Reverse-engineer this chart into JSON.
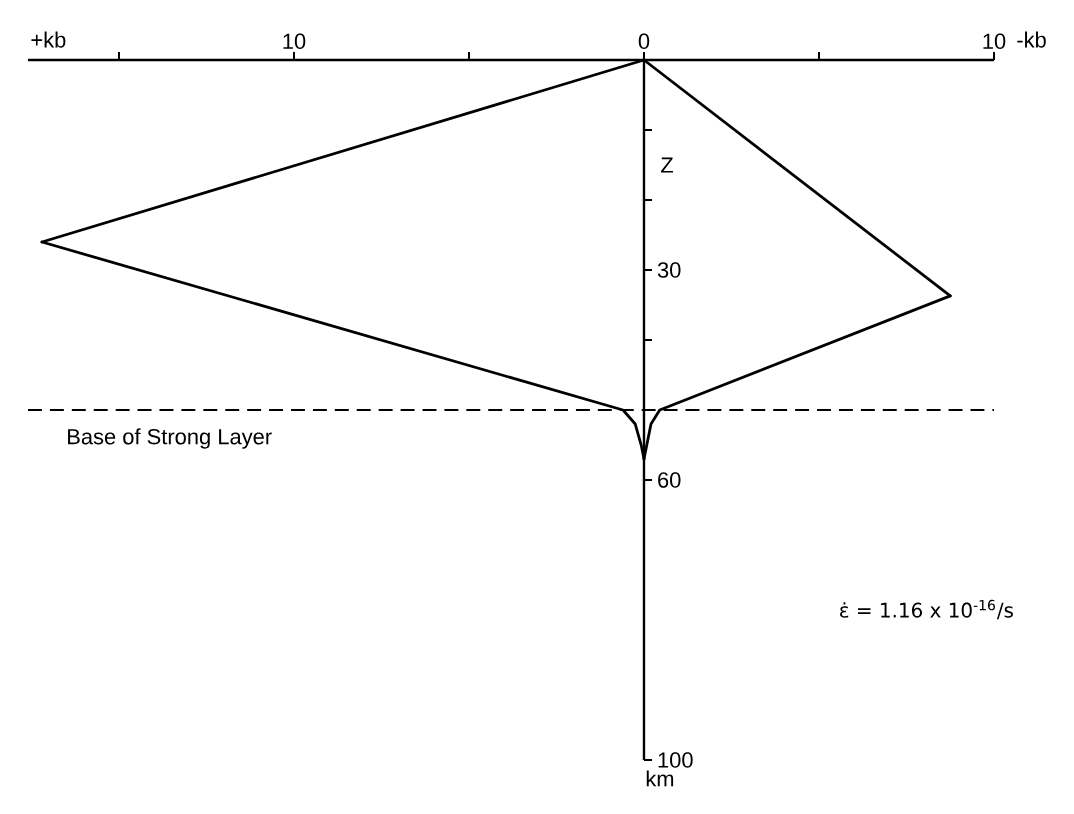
{
  "chart_data": {
    "type": "line",
    "ylabel": "Z",
    "annotations": [
      "+kb",
      "-kb",
      "km",
      "ε̇ = 1.16 x 10$^{-16}$/s"
    ],
    "series": [
      {
        "color": "#000000",
        "x": [
          0,
          17.2
        ],
        "values": [
          0,
          26
        ]
      },
      {
        "color": "#000000",
        "x": [
          17.2,
          0.6,
          0.25,
          0.08,
          0
        ],
        "values": [
          26,
          50,
          52,
          55,
          57
        ]
      },
      {
        "color": "#000000",
        "x": [
          0,
          -0.08,
          -0.2,
          -0.45,
          -8.75
        ],
        "values": [
          57,
          55,
          52,
          50,
          33.7
        ]
      },
      {
        "color": "#000000",
        "x": [
          -8.75,
          0
        ],
        "values": [
          33.7,
          0
        ]
      }
    ],
    "line_style": "solid",
    "xlim": [
      17.6,
      -10
    ],
    "ylim": [
      100,
      0
    ],
    "xticks": [
      {
        "value": 15,
        "label": null
      },
      10,
      {
        "value": 5,
        "label": null
      },
      0,
      {
        "value": -5,
        "label": null
      },
      {
        "value": -10,
        "label": "10"
      }
    ],
    "yticks": [
      {
        "value": 10,
        "label": null
      },
      {
        "value": 20,
        "label": null
      },
      30,
      {
        "value": 40,
        "label": null
      },
      60,
      100
    ],
    "ref_lines": [
      {
        "axis": "y",
        "value": 50,
        "label": "Base of Strong Layer",
        "color": "#000000",
        "line_style": "dashed"
      }
    ]
  }
}
